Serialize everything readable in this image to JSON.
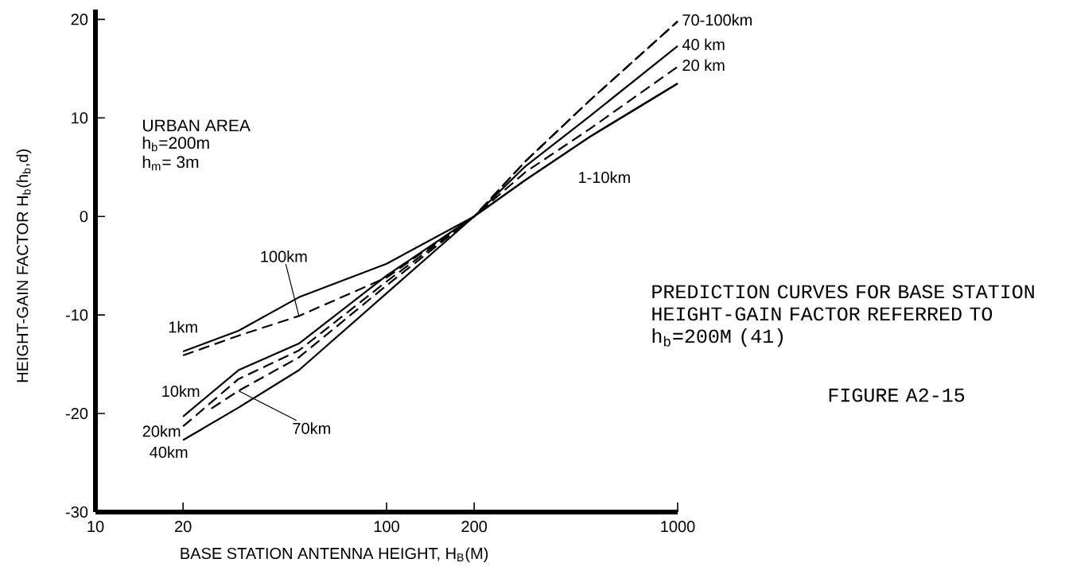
{
  "chart_data": {
    "type": "line",
    "xlabel": "BASE STATION ANTENNA HEIGHT, H$_{B}$(M)",
    "ylabel": "HEIGHT-GAIN FACTOR H$_{b}$(h$_{b}$,d)",
    "log": "x",
    "xlim": [
      10,
      1000
    ],
    "ylim": [
      -30,
      21
    ],
    "xticks": [
      10,
      20,
      100,
      200,
      1000
    ],
    "yticks": [
      -30,
      -20,
      -10,
      0,
      10,
      20
    ],
    "series": [
      {
        "color": "#000000",
        "line_style": "solid",
        "x": [
          20,
          31,
          50,
          100,
          200,
          300,
          500,
          1000
        ],
        "values": [
          -13.7,
          -11.6,
          -8.2,
          -4.8,
          0,
          3.7,
          8.1,
          13.5
        ]
      },
      {
        "color": "#000000",
        "line_style": "dashed",
        "x": [
          20,
          31,
          50,
          100,
          200,
          300,
          500,
          1000
        ],
        "values": [
          -14.1,
          -12.1,
          -10.1,
          -6.2,
          0,
          5.6,
          11.8,
          19.8
        ]
      },
      {
        "color": "#000000",
        "line_style": "solid",
        "x": [
          20,
          31,
          50,
          100,
          200,
          300,
          500,
          1000
        ],
        "values": [
          -20.3,
          -15.6,
          -12.9,
          -6.0,
          0,
          3.7,
          8.1,
          13.5
        ]
      },
      {
        "color": "#000000",
        "line_style": "dashed",
        "x": [
          20,
          31,
          50,
          100,
          200,
          300,
          500,
          1000
        ],
        "values": [
          -21.3,
          -16.5,
          -13.6,
          -6.6,
          0,
          4.5,
          8.9,
          15.2
        ]
      },
      {
        "color": "#000000",
        "line_style": "solid",
        "x": [
          20,
          31,
          50,
          100,
          200,
          300,
          500,
          1000
        ],
        "values": [
          -22.7,
          -19.4,
          -15.6,
          -7.8,
          0,
          5.1,
          10.2,
          17.3
        ]
      },
      {
        "color": "#000000",
        "line_style": "dashed",
        "x": [
          25,
          31,
          50,
          100,
          200,
          300,
          500,
          1000
        ],
        "values": [
          -19.5,
          -17.7,
          -14.3,
          -7.0,
          0,
          5.6,
          11.8,
          19.8
        ]
      }
    ],
    "annotations": [
      "URBAN AREA",
      "h$_{b}$=200m",
      "h$_{m}$= 3m",
      "PREDICTION CURVES FOR BASE STATION HEIGHT-GAIN FACTOR REFERRED TO h$_{b}$=200M (41)",
      "FIGURE A2-15",
      {
        "text": "1km",
        "x": 20,
        "y": -13.7
      },
      {
        "text": "100km",
        "x": 50,
        "y": -10.1
      },
      {
        "text": "10km",
        "x": 20,
        "y": -20.3
      },
      {
        "text": "20km",
        "x": 20,
        "y": -21.3
      },
      {
        "text": "40km",
        "x": 20,
        "y": -22.7
      },
      {
        "text": "70km",
        "x": 31,
        "y": -17.7
      },
      {
        "text": "70-100km",
        "x": 1000,
        "y": 19.8
      },
      {
        "text": "40 km",
        "x": 1000,
        "y": 17.3
      },
      {
        "text": "20 km",
        "x": 1000,
        "y": 15.2
      },
      {
        "text": "1-10km",
        "x": 500,
        "y": 8.1
      }
    ]
  }
}
